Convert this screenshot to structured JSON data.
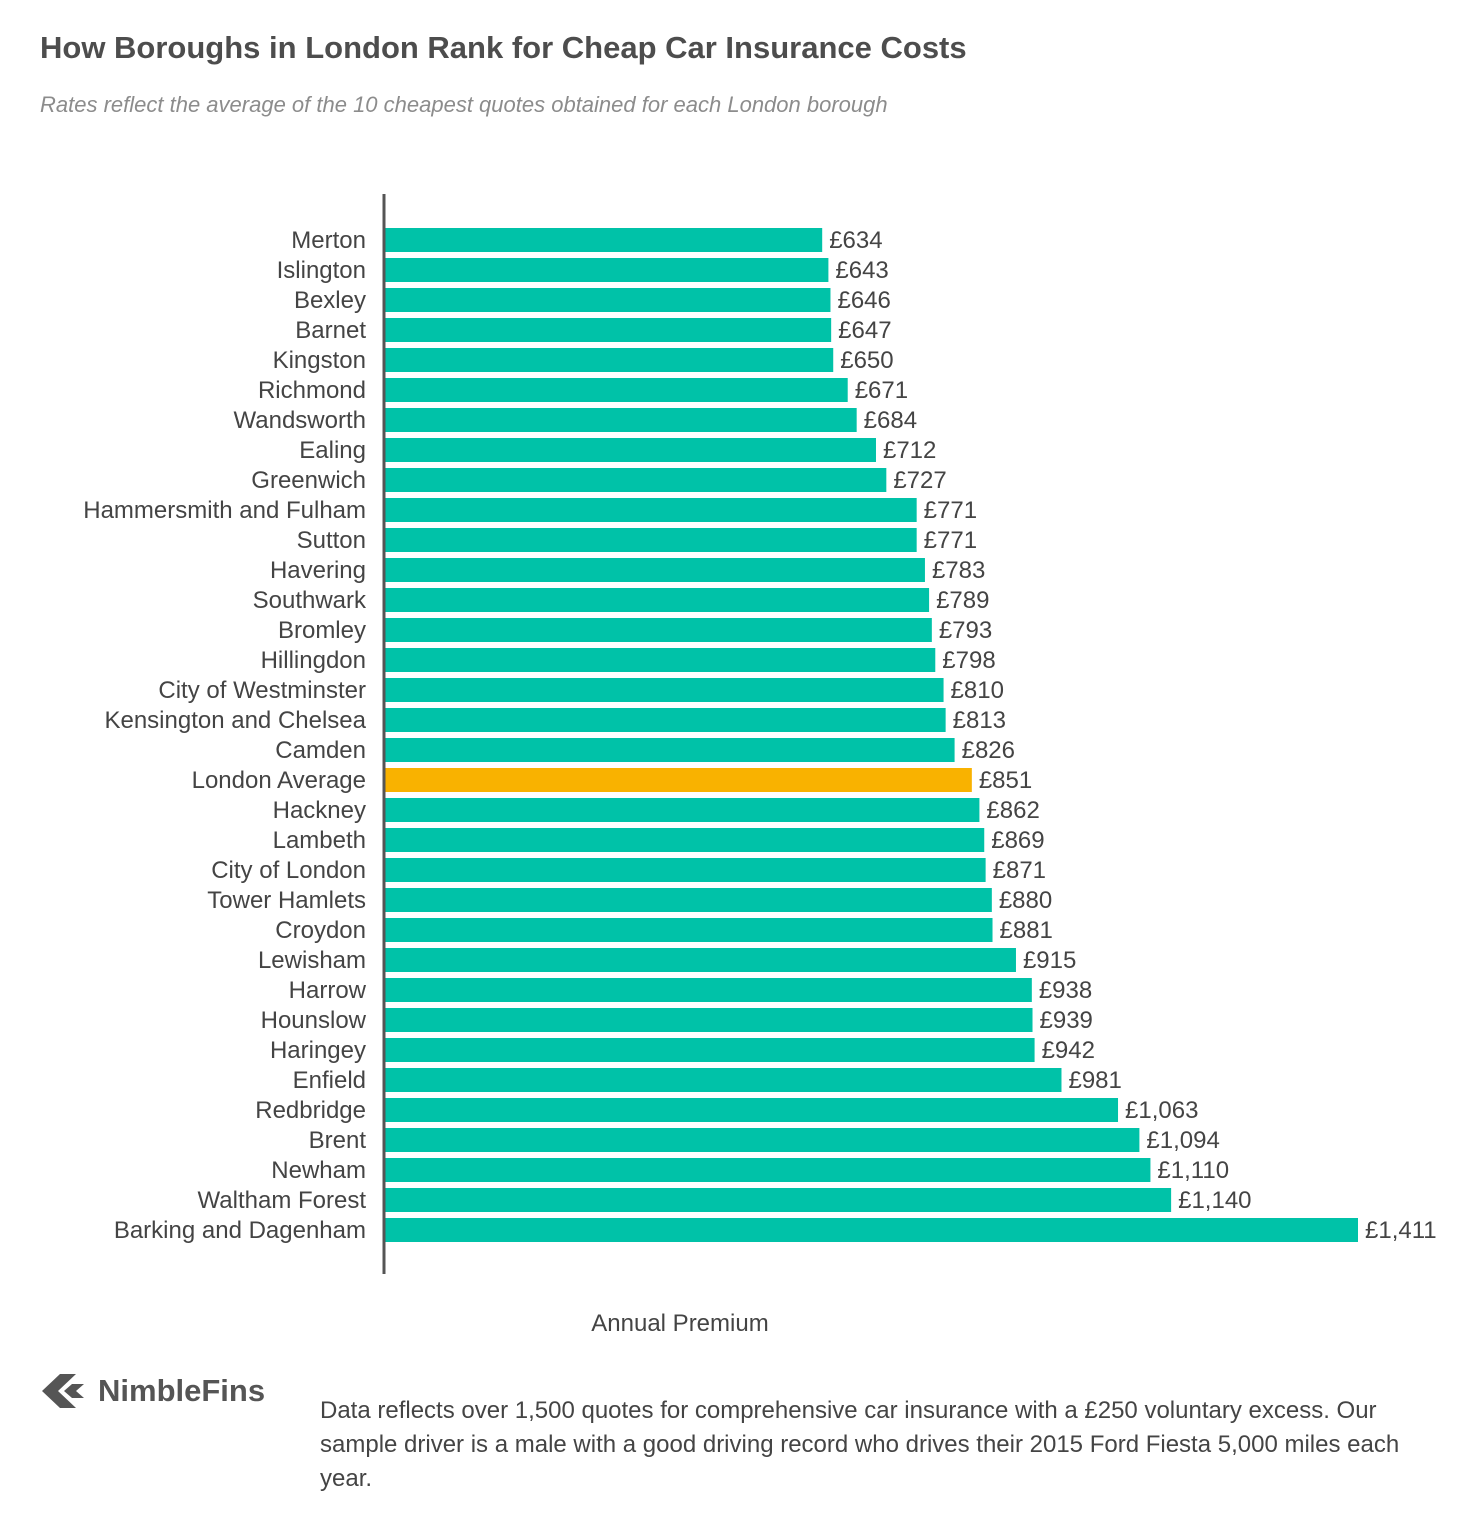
{
  "title": "How Boroughs in London Rank for Cheap Car Insurance Costs",
  "subtitle": "Rates reflect the average of the 10 cheapest quotes obtained for each London borough",
  "brand": "NimbleFins",
  "footnote": "Data reflects over 1,500 quotes for comprehensive car insurance with a £250 voluntary excess. Our sample driver is a male with a good driving record who drives their 2015 Ford Fiesta 5,000 miles each year.",
  "colors": {
    "bar": "#00c2a8",
    "highlight": "#f9b200",
    "axis": "#555555"
  },
  "chart_data": {
    "type": "bar",
    "orientation": "horizontal",
    "xlabel": "Annual Premium",
    "ylabel": "",
    "xlim": [
      0,
      1411
    ],
    "grid": false,
    "highlight": "London Average",
    "categories": [
      "Merton",
      "Islington",
      "Bexley",
      "Barnet",
      "Kingston",
      "Richmond",
      "Wandsworth",
      "Ealing",
      "Greenwich",
      "Hammersmith and Fulham",
      "Sutton",
      "Havering",
      "Southwark",
      "Bromley",
      "Hillingdon",
      "City of Westminster",
      "Kensington and Chelsea",
      "Camden",
      "London Average",
      "Hackney",
      "Lambeth",
      "City of London",
      "Tower Hamlets",
      "Croydon",
      "Lewisham",
      "Harrow",
      "Hounslow",
      "Haringey",
      "Enfield",
      "Redbridge",
      "Brent",
      "Newham",
      "Waltham Forest",
      "Barking and Dagenham"
    ],
    "values": [
      634,
      643,
      646,
      647,
      650,
      671,
      684,
      712,
      727,
      771,
      771,
      783,
      789,
      793,
      798,
      810,
      813,
      826,
      851,
      862,
      869,
      871,
      880,
      881,
      915,
      938,
      939,
      942,
      981,
      1063,
      1094,
      1110,
      1140,
      1411
    ],
    "value_labels": [
      "£634",
      "£643",
      "£646",
      "£647",
      "£650",
      "£671",
      "£684",
      "£712",
      "£727",
      "£771",
      "£771",
      "£783",
      "£789",
      "£793",
      "£798",
      "£810",
      "£813",
      "£826",
      "£851",
      "£862",
      "£869",
      "£871",
      "£880",
      "£881",
      "£915",
      "£938",
      "£939",
      "£942",
      "£981",
      "£1,063",
      "£1,094",
      "£1,110",
      "£1,140",
      "£1,411"
    ]
  }
}
